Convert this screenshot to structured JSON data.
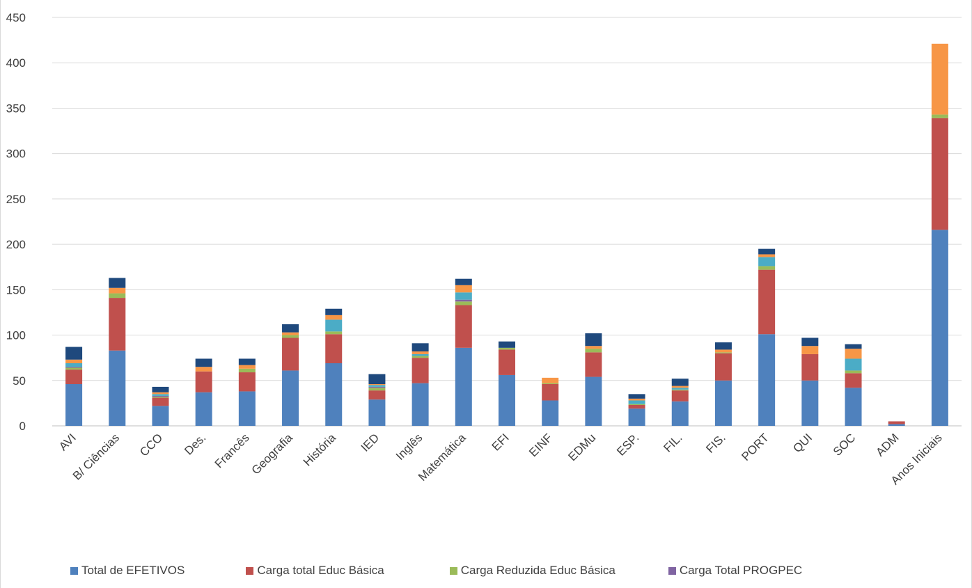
{
  "chart_data": {
    "type": "bar",
    "stacked": true,
    "title": "",
    "xlabel": "",
    "ylabel": "",
    "ylim": [
      0,
      450
    ],
    "yticks": [
      0,
      50,
      100,
      150,
      200,
      250,
      300,
      350,
      400,
      450
    ],
    "grid": true,
    "legend_position": "bottom",
    "categories": [
      "AVI",
      "B/ Ciências",
      "CCO",
      "Des.",
      "Francês",
      "Geografia",
      "História",
      "IED",
      "Inglês",
      "Matemática",
      "EFI",
      "EINF",
      "EDMu",
      "ESP.",
      "FIL.",
      "FIS.",
      "PORT",
      "QUI",
      "SOC",
      "ADM",
      "Anos Iniciais"
    ],
    "series": [
      {
        "name": "Total de EFETIVOS",
        "color": "#4f81bd",
        "values": [
          46,
          83,
          22,
          37,
          38,
          61,
          69,
          29,
          47,
          86,
          56,
          28,
          54,
          19,
          27,
          50,
          101,
          50,
          42,
          2,
          216
        ]
      },
      {
        "name": "Carga total Educ Básica",
        "color": "#c0504d",
        "values": [
          16,
          58,
          9,
          23,
          21,
          36,
          32,
          10,
          28,
          47,
          28,
          18,
          27,
          4,
          12,
          30,
          71,
          29,
          16,
          3,
          123
        ]
      },
      {
        "name": "Carga Reduzida Educ Básica",
        "color": "#9bbb59",
        "values": [
          2,
          5,
          1,
          0,
          4,
          3,
          3,
          3,
          2,
          4,
          2,
          1,
          4,
          1,
          1,
          1,
          4,
          0,
          3,
          0,
          4
        ]
      },
      {
        "name": "Carga Total PROGPEC",
        "color": "#8064a2",
        "values": [
          1,
          0,
          1,
          0,
          0,
          0,
          0,
          1,
          0,
          2,
          0,
          0,
          0,
          0,
          0,
          0,
          0,
          0,
          0,
          0,
          0
        ]
      },
      {
        "name": "",
        "color": "#4bacc6",
        "values": [
          4,
          0,
          2,
          0,
          0,
          0,
          13,
          2,
          2,
          8,
          0,
          0,
          0,
          4,
          2,
          0,
          10,
          0,
          13,
          0,
          0
        ]
      },
      {
        "name": "",
        "color": "#f79646",
        "values": [
          4,
          6,
          2,
          5,
          4,
          3,
          5,
          1,
          3,
          8,
          0,
          6,
          3,
          2,
          2,
          3,
          3,
          9,
          11,
          0,
          78
        ]
      },
      {
        "name": "",
        "color": "#1f497d",
        "values": [
          14,
          11,
          6,
          9,
          7,
          9,
          7,
          11,
          9,
          7,
          7,
          0,
          14,
          5,
          8,
          8,
          6,
          9,
          5,
          0,
          0
        ]
      }
    ]
  }
}
